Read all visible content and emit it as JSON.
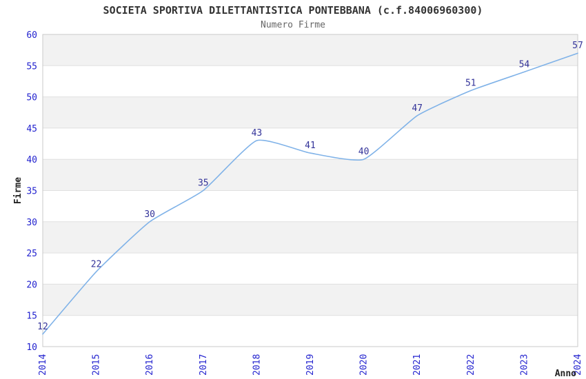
{
  "chart_data": {
    "type": "line",
    "title": "SOCIETA SPORTIVA DILETTANTISTICA PONTEBBANA (c.f.84006960300)",
    "subtitle": "Numero Firme",
    "xlabel": "Anno",
    "ylabel": "Firme",
    "x": [
      "2014",
      "2015",
      "2016",
      "2017",
      "2018",
      "2019",
      "2020",
      "2021",
      "2022",
      "2023",
      "2024"
    ],
    "series": [
      {
        "name": "Numero Firme",
        "values": [
          12,
          22,
          30,
          35,
          43,
          41,
          40,
          47,
          51,
          54,
          57
        ]
      }
    ],
    "ylim": [
      10,
      60
    ],
    "ytick_step": 5,
    "grid": true,
    "legend_position": "none",
    "band_pattern": "alternating",
    "colors": {
      "line": "#7fb2e8",
      "tick_label": "#2323cf",
      "data_label": "#333399",
      "axis_title": "#222222",
      "band_gray": "#f2f2f2",
      "gridline": "#e0e0e0",
      "axis_border": "#c9c9c9",
      "title": "#333333",
      "subtitle": "#666666",
      "background": "#ffffff"
    }
  }
}
